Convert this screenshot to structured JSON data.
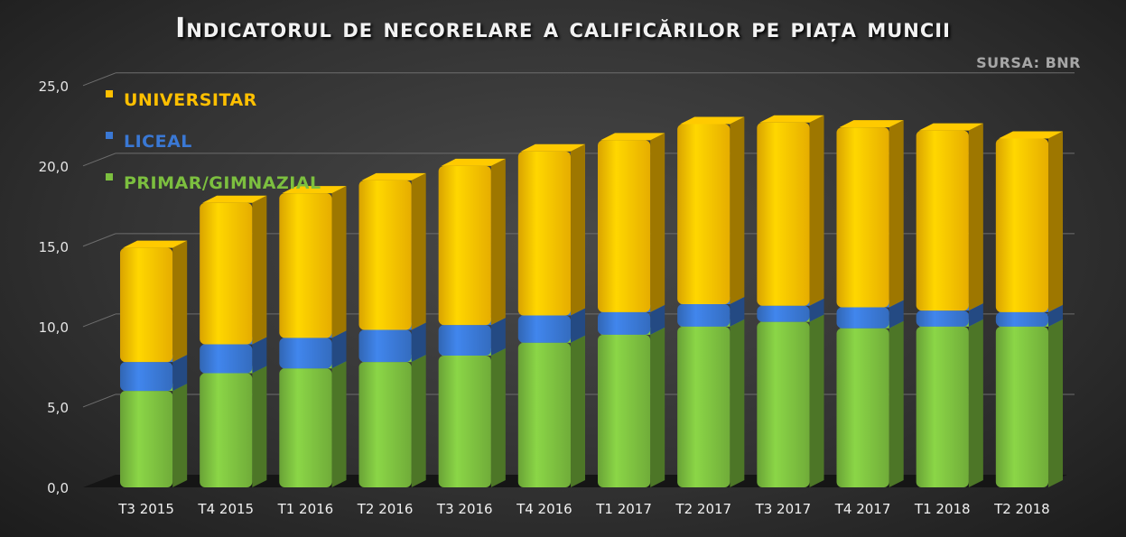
{
  "chart_data": {
    "type": "bar",
    "stacked": true,
    "style": "3d",
    "title": "Indicatorul de necorelare a calificărilor pe piața muncii",
    "source": "SURSA: BNR",
    "categories": [
      "T3 2015",
      "T4 2015",
      "T1 2016",
      "T2 2016",
      "T3 2016",
      "T4 2016",
      "T1 2017",
      "T2 2017",
      "T3 2017",
      "T4 2017",
      "T1 2018",
      "T2 2018"
    ],
    "series": [
      {
        "name": "PRIMAR/GIMNAZIAL",
        "color": "#7cbf3f",
        "values": [
          6.0,
          7.1,
          7.4,
          7.8,
          8.2,
          9.0,
          9.5,
          10.0,
          10.3,
          9.9,
          10.0,
          10.0
        ]
      },
      {
        "name": "LICEAL",
        "color": "#3a78d4",
        "values": [
          1.8,
          1.8,
          1.9,
          2.0,
          1.9,
          1.7,
          1.4,
          1.4,
          1.0,
          1.3,
          1.0,
          0.9
        ]
      },
      {
        "name": "UNIVERSITAR",
        "color": "#ffc000",
        "values": [
          7.1,
          8.8,
          9.0,
          9.3,
          9.9,
          10.2,
          10.7,
          11.2,
          11.4,
          11.2,
          11.2,
          10.8
        ]
      }
    ],
    "legend_order": [
      "UNIVERSITAR",
      "LICEAL",
      "PRIMAR/GIMNAZIAL"
    ],
    "yticks": [
      "0,0",
      "5,0",
      "10,0",
      "15,0",
      "20,0",
      "25,0"
    ],
    "ylim": [
      0,
      25
    ],
    "grid": true,
    "legend_position": "top-left"
  }
}
